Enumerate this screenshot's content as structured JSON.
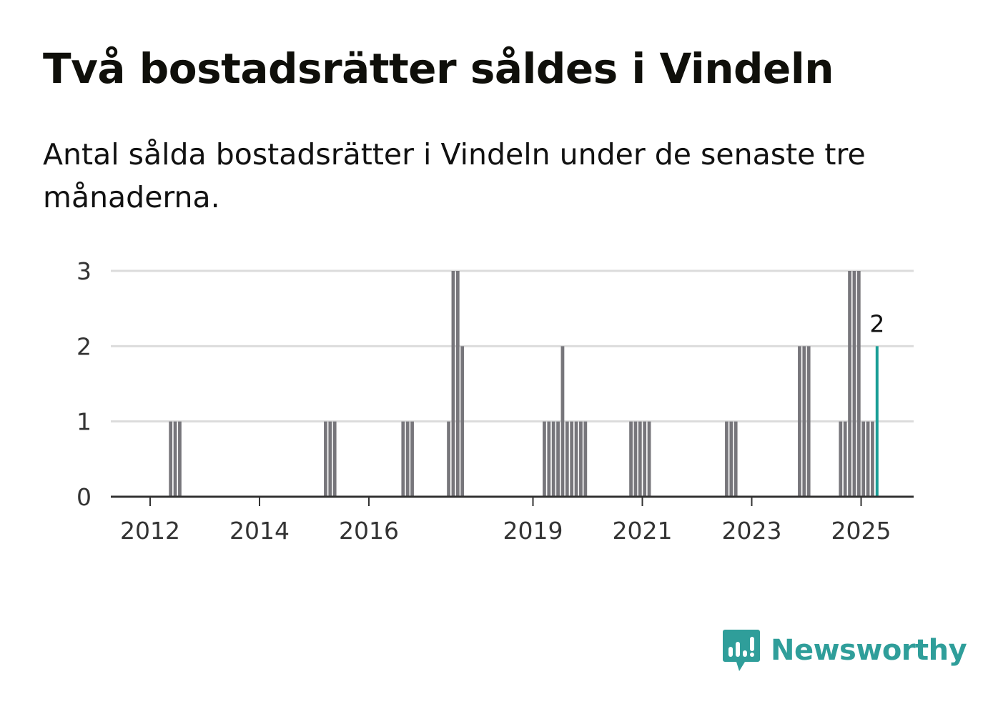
{
  "header": {
    "title": "Två bostadsrätter såldes i Vindeln",
    "subtitle": "Antal sålda bostadsrätter i Vindeln under de senaste tre månaderna."
  },
  "brand": {
    "name": "Newsworthy",
    "icon": "newsworthy-logo-icon",
    "color": "#2f9e9a"
  },
  "chart_data": {
    "type": "bar",
    "title": "Två bostadsrätter såldes i Vindeln",
    "subtitle": "Antal sålda bostadsrätter i Vindeln under de senaste tre månaderna.",
    "xlabel": "",
    "ylabel": "",
    "ylim": [
      0,
      3
    ],
    "yticks": [
      0,
      1,
      2,
      3
    ],
    "xticks": [
      {
        "year": 2012,
        "label": "2012"
      },
      {
        "year": 2014,
        "label": "2014"
      },
      {
        "year": 2016,
        "label": "2016"
      },
      {
        "year": 2019,
        "label": "2019"
      },
      {
        "year": 2021,
        "label": "2021"
      },
      {
        "year": 2023,
        "label": "2023"
      },
      {
        "year": 2025,
        "label": "2025"
      }
    ],
    "grid": true,
    "bar_color": "#77767b",
    "highlight_color": "#1a9e96",
    "highlight_label": "2",
    "x": [
      "2012-05",
      "2012-06",
      "2012-07",
      "2015-03",
      "2015-04",
      "2015-05",
      "2016-08",
      "2016-09",
      "2016-10",
      "2017-06",
      "2017-07",
      "2017-08",
      "2017-09",
      "2019-03",
      "2019-04",
      "2019-05",
      "2019-06",
      "2019-07",
      "2019-08",
      "2019-09",
      "2019-10",
      "2019-11",
      "2019-12",
      "2020-10",
      "2020-11",
      "2020-12",
      "2021-01",
      "2021-02",
      "2022-07",
      "2022-08",
      "2022-09",
      "2023-11",
      "2023-12",
      "2024-01",
      "2024-08",
      "2024-09",
      "2024-10",
      "2024-11",
      "2024-12",
      "2025-01",
      "2025-02",
      "2025-03",
      "2025-04"
    ],
    "values": [
      1,
      1,
      1,
      1,
      1,
      1,
      1,
      1,
      1,
      1,
      3,
      3,
      2,
      1,
      1,
      1,
      1,
      2,
      1,
      1,
      1,
      1,
      1,
      1,
      1,
      1,
      1,
      1,
      1,
      1,
      1,
      2,
      2,
      2,
      1,
      1,
      3,
      3,
      3,
      1,
      1,
      1,
      2
    ],
    "highlight_index": 42
  }
}
